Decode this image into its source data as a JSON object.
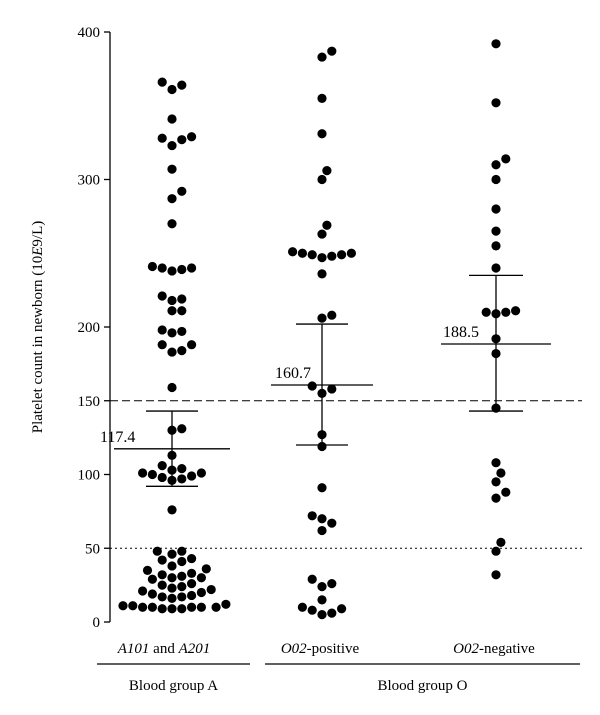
{
  "chart_data": {
    "type": "scatter",
    "ylabel": "Platelet count in newborn (10E9/L)",
    "ylabel_parts": {
      "pre": "Platelet count in newborn (10",
      "italic": "E",
      "post": "9/L)"
    },
    "y_ticks": [
      0,
      50,
      100,
      150,
      200,
      300,
      400
    ],
    "ylim": [
      0,
      400
    ],
    "reference_lines": [
      {
        "value": 150,
        "style": "dashed"
      },
      {
        "value": 50,
        "style": "dotted"
      }
    ],
    "categories": [
      {
        "label_parts": [
          {
            "text": "A101",
            "italic": true
          },
          {
            "text": " and ",
            "italic": false
          },
          {
            "text": "A201",
            "italic": true
          }
        ],
        "mean": 117.4,
        "mean_label": "117.4",
        "error_low": 92,
        "error_high": 143,
        "values": [
          366,
          364,
          361,
          341,
          329,
          328,
          327,
          323,
          307,
          292,
          287,
          270,
          241,
          240,
          240,
          239,
          238,
          221,
          219,
          218,
          211,
          211,
          198,
          197,
          196,
          188,
          188,
          184,
          183,
          159,
          131,
          130,
          113,
          106,
          104,
          103,
          101,
          101,
          100,
          99,
          98,
          97,
          96,
          76,
          48,
          48,
          46,
          43,
          42,
          41,
          38,
          36,
          35,
          33,
          32,
          31,
          30,
          30,
          29,
          26,
          25,
          24,
          23,
          22,
          21,
          20,
          19,
          18,
          17,
          17,
          16,
          12,
          11,
          11,
          10,
          10,
          10,
          10,
          10,
          9,
          9,
          9
        ]
      },
      {
        "label_parts": [
          {
            "text": "O02",
            "italic": true
          },
          {
            "text": "-positive",
            "italic": false
          }
        ],
        "mean": 160.7,
        "mean_label": "160.7",
        "error_low": 120,
        "error_high": 202,
        "values": [
          387,
          383,
          355,
          331,
          306,
          300,
          269,
          263,
          251,
          250,
          250,
          249,
          249,
          248,
          247,
          236,
          208,
          206,
          160,
          158,
          155,
          127,
          119,
          91,
          72,
          70,
          67,
          62,
          29,
          26,
          24,
          15,
          10,
          9,
          8,
          6,
          5
        ]
      },
      {
        "label_parts": [
          {
            "text": "O02",
            "italic": true
          },
          {
            "text": "-negative",
            "italic": false
          }
        ],
        "mean": 188.5,
        "mean_label": "188.5",
        "error_low": 143,
        "error_high": 235,
        "values": [
          392,
          352,
          314,
          310,
          300,
          280,
          265,
          255,
          240,
          211,
          210,
          210,
          209,
          192,
          182,
          145,
          108,
          101,
          95,
          88,
          84,
          54,
          48,
          32
        ]
      }
    ],
    "groups": [
      {
        "label": "Blood group A",
        "span": [
          0,
          0
        ]
      },
      {
        "label": "Blood group O",
        "span": [
          1,
          2
        ]
      }
    ]
  }
}
